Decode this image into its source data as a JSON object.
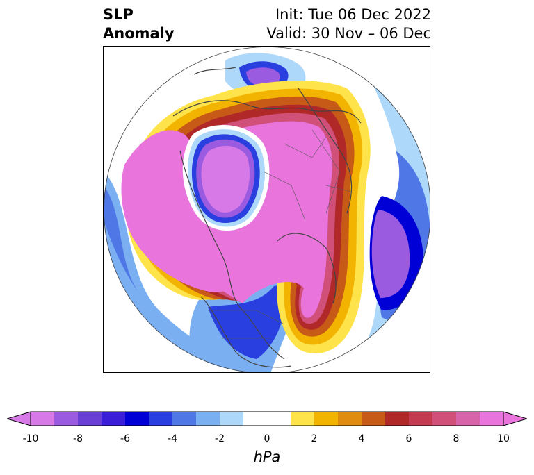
{
  "title": {
    "left_line1": "SLP",
    "left_line2": "Anomaly",
    "right_line1": "Init: Tue 06 Dec 2022",
    "right_line2": "Valid: 30 Nov – 06 Dec"
  },
  "colorbar": {
    "unit": "hPa",
    "ticks": [
      "-10",
      "-8",
      "-6",
      "-4",
      "-2",
      "0",
      "2",
      "4",
      "6",
      "8",
      "10"
    ],
    "tick_values": [
      -10,
      -8,
      -6,
      -4,
      -2,
      0,
      2,
      4,
      6,
      8,
      10
    ],
    "range": [
      -10,
      10
    ],
    "step": 1,
    "extend": "both",
    "colors": [
      "#d77ae8",
      "#9b5be0",
      "#6a3fd6",
      "#3a1ed8",
      "#0000d6",
      "#2a3fe0",
      "#4f78e6",
      "#7ab0f2",
      "#aed8fa",
      "#ffffff",
      "#ffffff",
      "#fee44a",
      "#f2b400",
      "#e08c10",
      "#c85a18",
      "#b02828",
      "#c43a50",
      "#d0507a",
      "#d764a8",
      "#e874dc"
    ],
    "extend_low_color": "#d77ae8",
    "extend_high_color": "#e874dc"
  },
  "map": {
    "projection": "north-polar-stereographic",
    "field": "sea-level-pressure-anomaly"
  }
}
